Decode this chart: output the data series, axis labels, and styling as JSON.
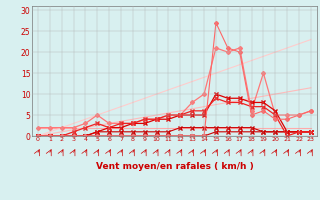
{
  "x": [
    0,
    1,
    2,
    3,
    4,
    5,
    6,
    7,
    8,
    9,
    10,
    11,
    12,
    13,
    14,
    15,
    16,
    17,
    18,
    19,
    20,
    21,
    22,
    23
  ],
  "series": [
    {
      "name": "flat_line_pink",
      "color": "#ffaaaa",
      "linewidth": 0.8,
      "marker": null,
      "y": [
        2,
        2,
        2,
        2,
        2,
        2,
        2,
        2,
        2,
        2,
        2,
        2,
        2,
        2,
        2,
        2,
        2,
        2,
        2,
        2,
        2,
        2,
        2,
        2
      ]
    },
    {
      "name": "diag_slow",
      "color": "#ffbbbb",
      "linewidth": 0.8,
      "marker": null,
      "y": [
        0,
        0.5,
        1,
        1.5,
        2,
        2.5,
        3,
        3.5,
        4,
        4.5,
        5,
        5.5,
        6,
        6.5,
        7,
        7.5,
        8,
        8.5,
        9,
        9.5,
        10,
        10.5,
        11,
        11.5
      ]
    },
    {
      "name": "diag_fast",
      "color": "#ffcccc",
      "linewidth": 0.8,
      "marker": null,
      "y": [
        0,
        1,
        2,
        3,
        4,
        5,
        6,
        7,
        8,
        9,
        10,
        11,
        12,
        13,
        14,
        15,
        16,
        17,
        18,
        19,
        20,
        21,
        22,
        23
      ]
    },
    {
      "name": "pink_diamond",
      "color": "#ff7777",
      "linewidth": 0.9,
      "marker": "D",
      "markersize": 2.0,
      "y": [
        2,
        2,
        2,
        2,
        3,
        5,
        3,
        3,
        3,
        4,
        4,
        5,
        5,
        8,
        10,
        21,
        20,
        21,
        6,
        15,
        5,
        5,
        5,
        6
      ]
    },
    {
      "name": "dark_red_flat",
      "color": "#cc0000",
      "linewidth": 0.8,
      "marker": "x",
      "markersize": 2.5,
      "y": [
        0,
        0,
        0,
        0,
        0,
        0,
        0,
        0,
        0,
        0,
        0,
        0,
        0,
        0,
        0,
        1,
        1,
        1,
        1,
        1,
        1,
        1,
        1,
        1
      ]
    },
    {
      "name": "dark_red2",
      "color": "#cc0000",
      "linewidth": 0.8,
      "marker": "x",
      "markersize": 2.5,
      "y": [
        0,
        0,
        0,
        0,
        0,
        1,
        1,
        1,
        1,
        1,
        1,
        1,
        2,
        2,
        2,
        2,
        2,
        2,
        2,
        1,
        1,
        1,
        1,
        1
      ]
    },
    {
      "name": "red_mid",
      "color": "#dd0000",
      "linewidth": 0.9,
      "marker": "x",
      "markersize": 2.5,
      "y": [
        0,
        0,
        0,
        0,
        0,
        1,
        2,
        2,
        3,
        3,
        4,
        4,
        5,
        5,
        5,
        10,
        9,
        9,
        8,
        8,
        6,
        1,
        1,
        1
      ]
    },
    {
      "name": "red_upper",
      "color": "#ee2222",
      "linewidth": 0.9,
      "marker": "x",
      "markersize": 2.5,
      "y": [
        0,
        0,
        0,
        1,
        2,
        3,
        2,
        3,
        3,
        4,
        4,
        5,
        5,
        6,
        6,
        9,
        8,
        8,
        7,
        7,
        5,
        0,
        1,
        1
      ]
    },
    {
      "name": "pink_spike",
      "color": "#ff6666",
      "linewidth": 0.8,
      "marker": "D",
      "markersize": 2.0,
      "y": [
        0,
        0,
        0,
        0,
        0,
        0,
        0,
        0,
        0,
        0,
        0,
        0,
        0,
        0,
        0,
        27,
        21,
        20,
        5,
        6,
        4,
        4,
        5,
        6
      ]
    }
  ],
  "xlabel": "Vent moyen/en rafales ( km/h )",
  "xlim": [
    -0.5,
    23.5
  ],
  "ylim": [
    0,
    31
  ],
  "yticks": [
    0,
    5,
    10,
    15,
    20,
    25,
    30
  ],
  "xticks": [
    0,
    1,
    2,
    3,
    4,
    5,
    6,
    7,
    8,
    9,
    10,
    11,
    12,
    13,
    14,
    15,
    16,
    17,
    18,
    19,
    20,
    21,
    22,
    23
  ],
  "bg_color": "#d8f0f0",
  "grid_color": "#b0b0b0",
  "tick_color": "#cc0000",
  "xlabel_color": "#cc0000",
  "arrow_color": "#cc0000"
}
